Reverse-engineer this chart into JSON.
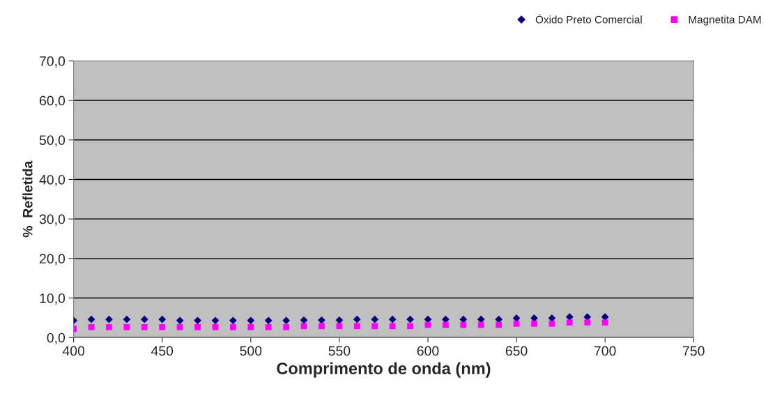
{
  "chart_data": {
    "type": "scatter",
    "xlabel": "Comprimento de onda (nm)",
    "ylabel": "%  Refletida",
    "x": [
      400,
      410,
      420,
      430,
      440,
      450,
      460,
      470,
      480,
      490,
      500,
      510,
      520,
      530,
      540,
      550,
      560,
      570,
      580,
      590,
      600,
      610,
      620,
      630,
      640,
      650,
      660,
      670,
      680,
      690,
      700
    ],
    "series": [
      {
        "name": "Óxido Preto Comercial",
        "color": "#000080",
        "marker": "diamond",
        "values": [
          4.3,
          4.6,
          4.6,
          4.6,
          4.6,
          4.6,
          4.3,
          4.3,
          4.3,
          4.3,
          4.3,
          4.3,
          4.3,
          4.4,
          4.4,
          4.4,
          4.6,
          4.6,
          4.6,
          4.6,
          4.6,
          4.6,
          4.6,
          4.6,
          4.6,
          4.9,
          4.9,
          4.9,
          5.2,
          5.2,
          5.2
        ]
      },
      {
        "name": "Magnetita DAM",
        "color": "#ff00ff",
        "marker": "square",
        "values": [
          2.2,
          2.6,
          2.6,
          2.6,
          2.6,
          2.6,
          2.6,
          2.6,
          2.6,
          2.6,
          2.6,
          2.6,
          2.6,
          2.9,
          2.9,
          2.9,
          2.9,
          2.9,
          2.9,
          2.9,
          3.2,
          3.2,
          3.2,
          3.2,
          3.2,
          3.5,
          3.5,
          3.5,
          3.8,
          3.8,
          3.8
        ]
      }
    ],
    "xlim": [
      400,
      750
    ],
    "xticks": [
      400,
      450,
      500,
      550,
      600,
      650,
      700,
      750
    ],
    "ylim": [
      0,
      70
    ],
    "yticks": [
      {
        "value": 0,
        "label": "0,0"
      },
      {
        "value": 10,
        "label": "10,0"
      },
      {
        "value": 20,
        "label": "20,0"
      },
      {
        "value": 30,
        "label": "30,0"
      },
      {
        "value": 40,
        "label": "40,0"
      },
      {
        "value": 50,
        "label": "50,0"
      },
      {
        "value": 60,
        "label": "60,0"
      },
      {
        "value": 70,
        "label": "70,0"
      }
    ],
    "grid": "y",
    "legend": "top right"
  }
}
